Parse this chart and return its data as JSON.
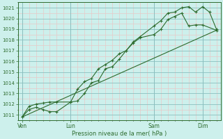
{
  "xlabel": "Pression niveau de la mer( hPa )",
  "bg_color": "#cdf0ec",
  "line_color": "#2d6b2d",
  "grid_major_color": "#8abfbf",
  "grid_minor_color": "#e8c8c8",
  "ylim": [
    1010.5,
    1021.5
  ],
  "yticks": [
    1011,
    1012,
    1013,
    1014,
    1015,
    1016,
    1017,
    1018,
    1019,
    1020,
    1021
  ],
  "xlim": [
    -0.3,
    14.3
  ],
  "xtick_positions": [
    0,
    3.5,
    9.5,
    13.0
  ],
  "xtick_labels": [
    "Ven",
    "Lun",
    "Sam",
    "Dim"
  ],
  "vline_positions": [
    0,
    3.5,
    9.5,
    13.0
  ],
  "series1_x": [
    0.0,
    0.5,
    1.0,
    1.5,
    2.0,
    2.5,
    3.5,
    4.0,
    4.5,
    5.0,
    5.5,
    6.0,
    6.5,
    7.0,
    7.5,
    8.0,
    8.5,
    9.5,
    10.0,
    10.5,
    11.0,
    11.5,
    12.0,
    12.5,
    13.0,
    13.5,
    14.0
  ],
  "series1_y": [
    1010.8,
    1011.5,
    1011.7,
    1011.5,
    1011.3,
    1011.3,
    1012.2,
    1012.3,
    1013.0,
    1014.0,
    1014.2,
    1015.3,
    1015.5,
    1016.2,
    1017.0,
    1017.8,
    1018.3,
    1019.3,
    1019.8,
    1020.5,
    1020.6,
    1021.0,
    1021.1,
    1020.6,
    1021.1,
    1020.6,
    1019.0
  ],
  "series2_x": [
    0.0,
    0.5,
    1.0,
    1.5,
    2.0,
    2.5,
    3.5,
    4.0,
    4.5,
    5.0,
    5.5,
    6.0,
    6.5,
    7.0,
    7.5,
    8.0,
    8.5,
    9.5,
    10.0,
    10.5,
    11.0,
    11.5,
    12.0,
    12.5,
    13.0,
    14.0
  ],
  "series2_y": [
    1010.8,
    1011.8,
    1012.0,
    1012.1,
    1012.2,
    1012.2,
    1012.2,
    1013.4,
    1014.1,
    1014.4,
    1015.3,
    1015.7,
    1016.1,
    1016.7,
    1017.0,
    1017.7,
    1018.2,
    1018.5,
    1019.0,
    1019.9,
    1020.2,
    1020.5,
    1019.3,
    1019.4,
    1019.4,
    1018.9
  ],
  "series3_x": [
    0.0,
    14.0
  ],
  "series3_y": [
    1010.8,
    1018.9
  ]
}
